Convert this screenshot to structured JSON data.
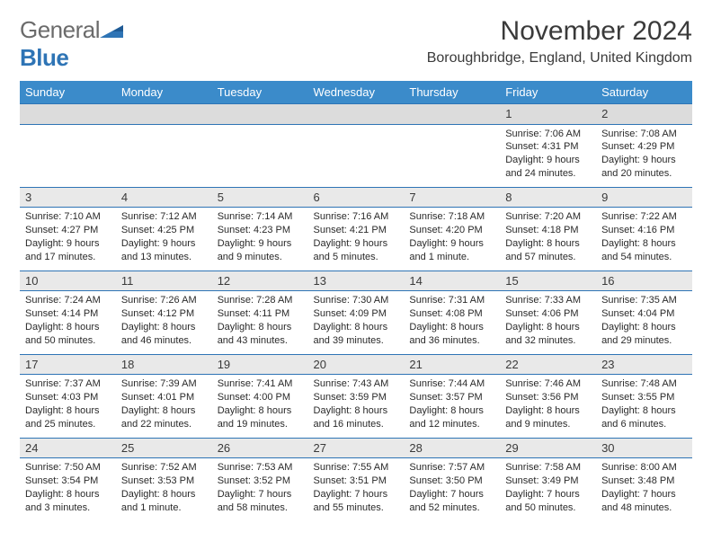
{
  "brand": {
    "part1": "General",
    "part2": "Blue"
  },
  "title": "November 2024",
  "location": "Boroughbridge, England, United Kingdom",
  "colors": {
    "header_bg": "#3b8bca",
    "header_text": "#ffffff",
    "rule": "#2e74b5",
    "dayrow_bg": "#e9e9e9",
    "dayrow_first_bg": "#dcdcdc",
    "text": "#2a2a2a",
    "logo_gray": "#6b6b6b",
    "logo_blue": "#2e74b5"
  },
  "day_headers": [
    "Sunday",
    "Monday",
    "Tuesday",
    "Wednesday",
    "Thursday",
    "Friday",
    "Saturday"
  ],
  "weeks": [
    {
      "nums": [
        "",
        "",
        "",
        "",
        "",
        "1",
        "2"
      ],
      "cells": [
        null,
        null,
        null,
        null,
        null,
        {
          "sunrise": "Sunrise: 7:06 AM",
          "sunset": "Sunset: 4:31 PM",
          "day1": "Daylight: 9 hours",
          "day2": "and 24 minutes."
        },
        {
          "sunrise": "Sunrise: 7:08 AM",
          "sunset": "Sunset: 4:29 PM",
          "day1": "Daylight: 9 hours",
          "day2": "and 20 minutes."
        }
      ]
    },
    {
      "nums": [
        "3",
        "4",
        "5",
        "6",
        "7",
        "8",
        "9"
      ],
      "cells": [
        {
          "sunrise": "Sunrise: 7:10 AM",
          "sunset": "Sunset: 4:27 PM",
          "day1": "Daylight: 9 hours",
          "day2": "and 17 minutes."
        },
        {
          "sunrise": "Sunrise: 7:12 AM",
          "sunset": "Sunset: 4:25 PM",
          "day1": "Daylight: 9 hours",
          "day2": "and 13 minutes."
        },
        {
          "sunrise": "Sunrise: 7:14 AM",
          "sunset": "Sunset: 4:23 PM",
          "day1": "Daylight: 9 hours",
          "day2": "and 9 minutes."
        },
        {
          "sunrise": "Sunrise: 7:16 AM",
          "sunset": "Sunset: 4:21 PM",
          "day1": "Daylight: 9 hours",
          "day2": "and 5 minutes."
        },
        {
          "sunrise": "Sunrise: 7:18 AM",
          "sunset": "Sunset: 4:20 PM",
          "day1": "Daylight: 9 hours",
          "day2": "and 1 minute."
        },
        {
          "sunrise": "Sunrise: 7:20 AM",
          "sunset": "Sunset: 4:18 PM",
          "day1": "Daylight: 8 hours",
          "day2": "and 57 minutes."
        },
        {
          "sunrise": "Sunrise: 7:22 AM",
          "sunset": "Sunset: 4:16 PM",
          "day1": "Daylight: 8 hours",
          "day2": "and 54 minutes."
        }
      ]
    },
    {
      "nums": [
        "10",
        "11",
        "12",
        "13",
        "14",
        "15",
        "16"
      ],
      "cells": [
        {
          "sunrise": "Sunrise: 7:24 AM",
          "sunset": "Sunset: 4:14 PM",
          "day1": "Daylight: 8 hours",
          "day2": "and 50 minutes."
        },
        {
          "sunrise": "Sunrise: 7:26 AM",
          "sunset": "Sunset: 4:12 PM",
          "day1": "Daylight: 8 hours",
          "day2": "and 46 minutes."
        },
        {
          "sunrise": "Sunrise: 7:28 AM",
          "sunset": "Sunset: 4:11 PM",
          "day1": "Daylight: 8 hours",
          "day2": "and 43 minutes."
        },
        {
          "sunrise": "Sunrise: 7:30 AM",
          "sunset": "Sunset: 4:09 PM",
          "day1": "Daylight: 8 hours",
          "day2": "and 39 minutes."
        },
        {
          "sunrise": "Sunrise: 7:31 AM",
          "sunset": "Sunset: 4:08 PM",
          "day1": "Daylight: 8 hours",
          "day2": "and 36 minutes."
        },
        {
          "sunrise": "Sunrise: 7:33 AM",
          "sunset": "Sunset: 4:06 PM",
          "day1": "Daylight: 8 hours",
          "day2": "and 32 minutes."
        },
        {
          "sunrise": "Sunrise: 7:35 AM",
          "sunset": "Sunset: 4:04 PM",
          "day1": "Daylight: 8 hours",
          "day2": "and 29 minutes."
        }
      ]
    },
    {
      "nums": [
        "17",
        "18",
        "19",
        "20",
        "21",
        "22",
        "23"
      ],
      "cells": [
        {
          "sunrise": "Sunrise: 7:37 AM",
          "sunset": "Sunset: 4:03 PM",
          "day1": "Daylight: 8 hours",
          "day2": "and 25 minutes."
        },
        {
          "sunrise": "Sunrise: 7:39 AM",
          "sunset": "Sunset: 4:01 PM",
          "day1": "Daylight: 8 hours",
          "day2": "and 22 minutes."
        },
        {
          "sunrise": "Sunrise: 7:41 AM",
          "sunset": "Sunset: 4:00 PM",
          "day1": "Daylight: 8 hours",
          "day2": "and 19 minutes."
        },
        {
          "sunrise": "Sunrise: 7:43 AM",
          "sunset": "Sunset: 3:59 PM",
          "day1": "Daylight: 8 hours",
          "day2": "and 16 minutes."
        },
        {
          "sunrise": "Sunrise: 7:44 AM",
          "sunset": "Sunset: 3:57 PM",
          "day1": "Daylight: 8 hours",
          "day2": "and 12 minutes."
        },
        {
          "sunrise": "Sunrise: 7:46 AM",
          "sunset": "Sunset: 3:56 PM",
          "day1": "Daylight: 8 hours",
          "day2": "and 9 minutes."
        },
        {
          "sunrise": "Sunrise: 7:48 AM",
          "sunset": "Sunset: 3:55 PM",
          "day1": "Daylight: 8 hours",
          "day2": "and 6 minutes."
        }
      ]
    },
    {
      "nums": [
        "24",
        "25",
        "26",
        "27",
        "28",
        "29",
        "30"
      ],
      "cells": [
        {
          "sunrise": "Sunrise: 7:50 AM",
          "sunset": "Sunset: 3:54 PM",
          "day1": "Daylight: 8 hours",
          "day2": "and 3 minutes."
        },
        {
          "sunrise": "Sunrise: 7:52 AM",
          "sunset": "Sunset: 3:53 PM",
          "day1": "Daylight: 8 hours",
          "day2": "and 1 minute."
        },
        {
          "sunrise": "Sunrise: 7:53 AM",
          "sunset": "Sunset: 3:52 PM",
          "day1": "Daylight: 7 hours",
          "day2": "and 58 minutes."
        },
        {
          "sunrise": "Sunrise: 7:55 AM",
          "sunset": "Sunset: 3:51 PM",
          "day1": "Daylight: 7 hours",
          "day2": "and 55 minutes."
        },
        {
          "sunrise": "Sunrise: 7:57 AM",
          "sunset": "Sunset: 3:50 PM",
          "day1": "Daylight: 7 hours",
          "day2": "and 52 minutes."
        },
        {
          "sunrise": "Sunrise: 7:58 AM",
          "sunset": "Sunset: 3:49 PM",
          "day1": "Daylight: 7 hours",
          "day2": "and 50 minutes."
        },
        {
          "sunrise": "Sunrise: 8:00 AM",
          "sunset": "Sunset: 3:48 PM",
          "day1": "Daylight: 7 hours",
          "day2": "and 48 minutes."
        }
      ]
    }
  ]
}
